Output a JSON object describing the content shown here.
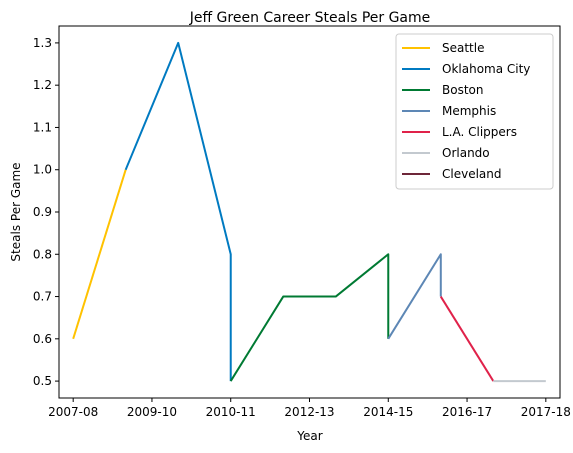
{
  "chart_data": {
    "type": "line",
    "title": "Jeff Green  Career Steals Per Game",
    "xlabel": "Year",
    "ylabel": "Steals Per Game",
    "x_ticks": [
      "2007-08",
      "2009-10",
      "2010-11",
      "2012-13",
      "2014-15",
      "2016-17",
      "2017-18"
    ],
    "y_ticks": [
      "0.5",
      "0.6",
      "0.7",
      "0.8",
      "0.9",
      "1.0",
      "1.1",
      "1.2",
      "1.3"
    ],
    "ylim": [
      0.46,
      1.34
    ],
    "xlim": [
      -0.27,
      9.27
    ],
    "grid": false,
    "legend_position": "top-right",
    "series": [
      {
        "name": "Seattle",
        "color": "#FFC200",
        "x": [
          0,
          1
        ],
        "y": [
          0.6,
          1.0
        ]
      },
      {
        "name": "Oklahoma City",
        "color": "#007AC1",
        "x": [
          1,
          2,
          3,
          3
        ],
        "y": [
          1.0,
          1.3,
          0.8,
          0.5
        ]
      },
      {
        "name": "Boston",
        "color": "#007A33",
        "x": [
          3,
          4,
          5,
          6,
          6
        ],
        "y": [
          0.5,
          0.7,
          0.7,
          0.8,
          0.6
        ]
      },
      {
        "name": "Memphis",
        "color": "#5D87B5",
        "x": [
          6,
          7,
          7
        ],
        "y": [
          0.6,
          0.8,
          0.7
        ]
      },
      {
        "name": "L.A. Clippers",
        "color": "#E0224A",
        "x": [
          7,
          8
        ],
        "y": [
          0.7,
          0.5
        ]
      },
      {
        "name": "Orlando",
        "color": "#C3C9CF",
        "x": [
          8,
          9
        ],
        "y": [
          0.5,
          0.5
        ]
      },
      {
        "name": "Cleveland",
        "color": "#6E2639",
        "x": [
          9
        ],
        "y": [
          0.5
        ]
      }
    ]
  }
}
